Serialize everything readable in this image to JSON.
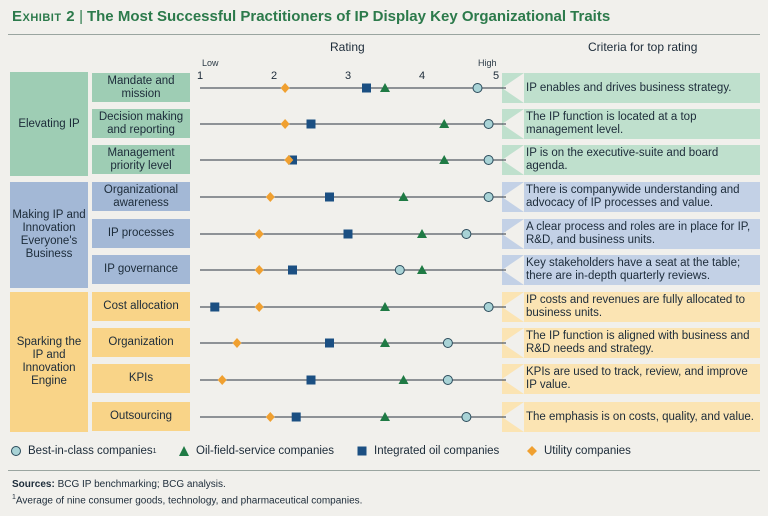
{
  "title": {
    "exhibit": "Exhibit 2",
    "separator": "|",
    "text": "The Most Successful Practitioners of IP Display Key Organizational Traits"
  },
  "headers": {
    "rating": "Rating",
    "criteria": "Criteria for top rating"
  },
  "scale": {
    "low": "Low",
    "high": "High"
  },
  "groups": [
    {
      "label": "Elevating IP",
      "color": "#9ecdb4"
    },
    {
      "label": "Making IP and Innovation Everyone's Business",
      "color": "#a3b8d6"
    },
    {
      "label": "Sparking the IP and Innovation Engine",
      "color": "#f9d488"
    }
  ],
  "criteria": [
    "IP enables and drives business strategy.",
    "The IP function is located at a top management level.",
    "IP is on the executive-suite and board agenda.",
    "There is companywide understanding and advocacy of IP processes and value.",
    "A clear process and roles are in place for IP, R&D, and business units.",
    "Key stakeholders have a seat at the table; there are in-depth quarterly reviews.",
    "IP costs and revenues are fully allocated to business units.",
    "The IP function is aligned with business and R&D needs and strategy.",
    "KPIs are used to track, review, and improve IP value.",
    "The emphasis is on costs, quality, and value."
  ],
  "legend": [
    {
      "label": "Best-in-class companies",
      "sup": "1",
      "marker": "circle",
      "color": "#a9d3d6"
    },
    {
      "label": "Oil-field-service companies",
      "sup": "",
      "marker": "triangle",
      "color": "#1f7a44"
    },
    {
      "label": "Integrated oil companies",
      "sup": "",
      "marker": "square",
      "color": "#1b4f82"
    },
    {
      "label": "Utility companies",
      "sup": "",
      "marker": "diamond",
      "color": "#f0a030"
    }
  ],
  "sources_label": "Sources:",
  "sources_text": "BCG IP benchmarking; BCG analysis.",
  "footnote_num": "1",
  "footnote_text": "Average of nine consumer goods, technology, and pharmaceutical companies.",
  "chart_data": {
    "type": "scatter",
    "xlim": [
      1,
      5
    ],
    "x_ticks": [
      "1",
      "2",
      "3",
      "4",
      "5"
    ],
    "categories": [
      "Mandate and mission",
      "Decision making and reporting",
      "Management priority level",
      "Organizational awareness",
      "IP processes",
      "IP governance",
      "Cost allocation",
      "Organization",
      "KPIs",
      "Outsourcing"
    ],
    "category_group": [
      0,
      0,
      0,
      1,
      1,
      1,
      2,
      2,
      2,
      2
    ],
    "series": [
      {
        "name": "Best-in-class companies",
        "marker": "circle",
        "color": "#a9d3d6",
        "values": [
          4.75,
          4.9,
          4.9,
          4.9,
          4.6,
          3.7,
          4.9,
          4.35,
          4.35,
          4.6
        ]
      },
      {
        "name": "Oil-field-service companies",
        "marker": "triangle",
        "color": "#1f7a44",
        "values": [
          3.5,
          4.3,
          4.3,
          3.75,
          4.0,
          4.0,
          3.5,
          3.5,
          3.75,
          3.5
        ]
      },
      {
        "name": "Integrated oil companies",
        "marker": "square",
        "color": "#1b4f82",
        "values": [
          3.25,
          2.5,
          2.25,
          2.75,
          3.0,
          2.25,
          1.2,
          2.75,
          2.5,
          2.3
        ]
      },
      {
        "name": "Utility companies",
        "marker": "diamond",
        "color": "#f0a030",
        "values": [
          2.15,
          2.15,
          2.2,
          1.95,
          1.8,
          1.8,
          1.8,
          1.5,
          1.3,
          1.95
        ]
      }
    ]
  }
}
